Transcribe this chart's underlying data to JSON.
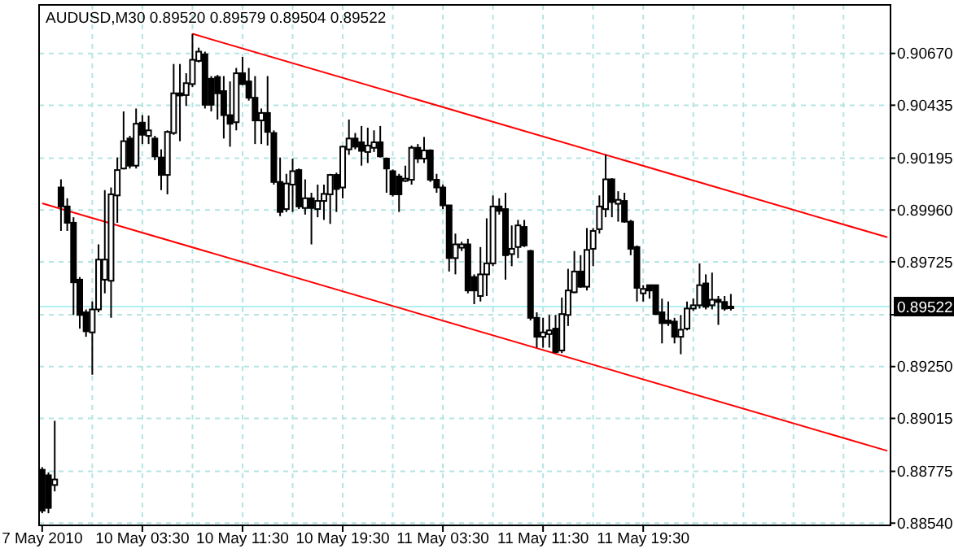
{
  "chart_data": {
    "type": "candlestick",
    "title": "AUDUSD,M30  0.89520 0.89579 0.89504 0.89522",
    "categories": [
      "7 May 2010",
      null,
      null,
      null,
      null,
      null,
      null,
      null,
      null,
      null,
      null,
      null,
      null,
      null,
      null,
      null,
      "10 May 03:30",
      null,
      null,
      null,
      null,
      null,
      null,
      null,
      null,
      null,
      null,
      null,
      null,
      null,
      null,
      null,
      "10 May 11:30",
      null,
      null,
      null,
      null,
      null,
      null,
      null,
      null,
      null,
      null,
      null,
      null,
      null,
      null,
      null,
      "10 May 19:30",
      null,
      null,
      null,
      null,
      null,
      null,
      null,
      null,
      null,
      null,
      null,
      null,
      null,
      null,
      null,
      "11 May 03:30",
      null,
      null,
      null,
      null,
      null,
      null,
      null,
      null,
      null,
      null,
      null,
      null,
      null,
      null,
      null,
      "11 May 11:30",
      null,
      null,
      null,
      null,
      null,
      null,
      null,
      null,
      null,
      null,
      null,
      null,
      null,
      null,
      null,
      "11 May 19:30",
      null,
      null,
      null,
      null,
      null,
      null,
      null,
      null,
      null,
      null,
      null,
      null,
      null,
      null,
      null,
      null,
      null,
      null,
      null,
      null,
      null,
      null,
      null,
      null,
      null,
      null,
      null,
      null,
      null,
      null,
      null,
      null,
      null,
      null,
      null,
      null,
      null,
      null,
      null
    ],
    "ohlc": [
      [
        0.88782,
        0.88794,
        0.88585,
        0.88597
      ],
      [
        0.88757,
        0.8877,
        0.88585,
        0.88609
      ],
      [
        0.88713,
        0.89004,
        0.88684,
        0.88738
      ],
      [
        0.90062,
        0.90099,
        0.89865,
        0.89976
      ],
      [
        0.89976,
        0.90013,
        0.89865,
        0.89902
      ],
      [
        0.89902,
        0.89927,
        0.89484,
        0.89632
      ],
      [
        0.89644,
        0.89656,
        0.89422,
        0.89484
      ],
      [
        0.89496,
        0.89509,
        0.89385,
        0.8941
      ],
      [
        0.89405,
        0.89545,
        0.89213,
        0.89509
      ],
      [
        0.89509,
        0.89804,
        0.89496,
        0.89735
      ],
      [
        0.89644,
        0.9005,
        0.89582,
        0.89735
      ],
      [
        0.89639,
        0.90062,
        0.89471,
        0.90031
      ],
      [
        0.90026,
        0.90198,
        0.89902,
        0.90141
      ],
      [
        0.90148,
        0.90407,
        0.90144,
        0.90272
      ],
      [
        0.90284,
        0.90296,
        0.90148,
        0.90161
      ],
      [
        0.90161,
        0.9042,
        0.90148,
        0.90351
      ],
      [
        0.90356,
        0.9039,
        0.90259,
        0.90301
      ],
      [
        0.90296,
        0.90388,
        0.90259,
        0.90321
      ],
      [
        0.90284,
        0.90296,
        0.90186,
        0.90203
      ],
      [
        0.90198,
        0.90235,
        0.9005,
        0.90119
      ],
      [
        0.90119,
        0.90321,
        0.90031,
        0.90314
      ],
      [
        0.90309,
        0.90622,
        0.90301,
        0.90489
      ],
      [
        0.90489,
        0.90622,
        0.90272,
        0.90479
      ],
      [
        0.90481,
        0.9058,
        0.90432,
        0.90535
      ],
      [
        0.90531,
        0.90759,
        0.90518,
        0.90641
      ],
      [
        0.90636,
        0.90696,
        0.90629,
        0.90678
      ],
      [
        0.90666,
        0.90678,
        0.9042,
        0.90437
      ],
      [
        0.90555,
        0.90567,
        0.90407,
        0.90437
      ],
      [
        0.90563,
        0.90572,
        0.9037,
        0.90489
      ],
      [
        0.90499,
        0.90567,
        0.90284,
        0.9039
      ],
      [
        0.9039,
        0.90543,
        0.90247,
        0.90351
      ],
      [
        0.90358,
        0.90604,
        0.90321,
        0.9058
      ],
      [
        0.9058,
        0.90654,
        0.90526,
        0.90531
      ],
      [
        0.90543,
        0.90604,
        0.90456,
        0.90469
      ],
      [
        0.90469,
        0.90567,
        0.90259,
        0.90366
      ],
      [
        0.90366,
        0.9042,
        0.90259,
        0.904
      ],
      [
        0.904,
        0.90567,
        0.90252,
        0.90314
      ],
      [
        0.90309,
        0.90321,
        0.90075,
        0.90087
      ],
      [
        0.90087,
        0.90198,
        0.89932,
        0.89951
      ],
      [
        0.89964,
        0.90124,
        0.89951,
        0.9008
      ],
      [
        0.90075,
        0.90193,
        0.89951,
        0.90136
      ],
      [
        0.90141,
        0.90148,
        0.89964,
        0.89976
      ],
      [
        0.89969,
        0.90099,
        0.89939,
        0.90013
      ],
      [
        0.90013,
        0.90038,
        0.89804,
        0.89969
      ],
      [
        0.89964,
        0.90075,
        0.89927,
        0.90001
      ],
      [
        0.90001,
        0.90075,
        0.89915,
        0.90033
      ],
      [
        0.90031,
        0.90124,
        0.89897,
        0.90119
      ],
      [
        0.90119,
        0.90129,
        0.89951,
        0.90055
      ],
      [
        0.90062,
        0.90252,
        0.90013,
        0.90247
      ],
      [
        0.90235,
        0.9037,
        0.9021,
        0.90284
      ],
      [
        0.90284,
        0.90309,
        0.90235,
        0.90247
      ],
      [
        0.90267,
        0.90341,
        0.90161,
        0.90228
      ],
      [
        0.90223,
        0.90333,
        0.90173,
        0.90252
      ],
      [
        0.90242,
        0.90321,
        0.90223,
        0.90267
      ],
      [
        0.90267,
        0.90341,
        0.90198,
        0.90203
      ],
      [
        0.90193,
        0.90198,
        0.90038,
        0.90148
      ],
      [
        0.90136,
        0.90144,
        0.90021,
        0.90031
      ],
      [
        0.90112,
        0.90124,
        0.89951,
        0.90031
      ],
      [
        0.90092,
        0.90161,
        0.90087,
        0.90102
      ],
      [
        0.90097,
        0.90252,
        0.90075,
        0.90242
      ],
      [
        0.90242,
        0.90259,
        0.90173,
        0.90193
      ],
      [
        0.90193,
        0.90291,
        0.90173,
        0.9023
      ],
      [
        0.9023,
        0.90235,
        0.90087,
        0.90097
      ],
      [
        0.90097,
        0.90124,
        0.90038,
        0.90062
      ],
      [
        0.90062,
        0.90075,
        0.89964,
        0.89981
      ],
      [
        0.89981,
        0.89981,
        0.89681,
        0.89742
      ],
      [
        0.89742,
        0.89853,
        0.89668,
        0.89804
      ],
      [
        0.89789,
        0.89816,
        0.89774,
        0.89804
      ],
      [
        0.89804,
        0.89829,
        0.89582,
        0.89595
      ],
      [
        0.89656,
        0.89668,
        0.89533,
        0.89595
      ],
      [
        0.8957,
        0.89792,
        0.89545,
        0.89668
      ],
      [
        0.89668,
        0.89922,
        0.8957,
        0.89718
      ],
      [
        0.89718,
        0.90026,
        0.89705,
        0.89976
      ],
      [
        0.89976,
        0.90013,
        0.89939,
        0.89956
      ],
      [
        0.89964,
        0.90038,
        0.89644,
        0.89755
      ],
      [
        0.8976,
        0.8989,
        0.89705,
        0.89784
      ],
      [
        0.89792,
        0.89915,
        0.89742,
        0.8989
      ],
      [
        0.89883,
        0.89915,
        0.89792,
        0.89799
      ],
      [
        0.89774,
        0.89779,
        0.89459,
        0.89471
      ],
      [
        0.89471,
        0.89496,
        0.89336,
        0.89385
      ],
      [
        0.89385,
        0.89471,
        0.89336,
        0.89405
      ],
      [
        0.89397,
        0.89484,
        0.89336,
        0.89414
      ],
      [
        0.89422,
        0.89484,
        0.89311,
        0.89316
      ],
      [
        0.89323,
        0.89563,
        0.89311,
        0.89488
      ],
      [
        0.89484,
        0.89693,
        0.89434,
        0.89595
      ],
      [
        0.89587,
        0.89774,
        0.89582,
        0.89681
      ],
      [
        0.89681,
        0.89755,
        0.89607,
        0.89612
      ],
      [
        0.89612,
        0.89878,
        0.89595,
        0.89779
      ],
      [
        0.89784,
        0.89878,
        0.89705,
        0.89865
      ],
      [
        0.89873,
        0.90026,
        0.89853,
        0.89976
      ],
      [
        0.89964,
        0.9021,
        0.89927,
        0.90099
      ],
      [
        0.90099,
        0.90104,
        0.89927,
        0.89996
      ],
      [
        0.89988,
        0.90045,
        0.89907,
        0.90006
      ],
      [
        0.90001,
        0.90038,
        0.89902,
        0.89907
      ],
      [
        0.89907,
        0.89915,
        0.89755,
        0.89784
      ],
      [
        0.89792,
        0.89799,
        0.89545,
        0.89607
      ],
      [
        0.89582,
        0.89619,
        0.89545,
        0.89602
      ],
      [
        0.89619,
        0.89619,
        0.89558,
        0.89595
      ],
      [
        0.89619,
        0.89619,
        0.89484,
        0.89488
      ],
      [
        0.89496,
        0.89558,
        0.89355,
        0.89447
      ],
      [
        0.89459,
        0.89545,
        0.89434,
        0.89447
      ],
      [
        0.89454,
        0.89471,
        0.89355,
        0.89385
      ],
      [
        0.89385,
        0.89484,
        0.89306,
        0.89417
      ],
      [
        0.89422,
        0.89545,
        0.89414,
        0.89513
      ],
      [
        0.89513,
        0.89558,
        0.89503,
        0.89528
      ],
      [
        0.89528,
        0.89718,
        0.89513,
        0.89619
      ],
      [
        0.89627,
        0.89668,
        0.89509,
        0.89521
      ],
      [
        0.89528,
        0.89676,
        0.89509,
        0.89553
      ],
      [
        0.89553,
        0.8957,
        0.89439,
        0.89543
      ],
      [
        0.89543,
        0.8957,
        0.89503,
        0.89513
      ],
      [
        0.8952,
        0.89579,
        0.89504,
        0.89522
      ],
      null,
      null,
      null,
      null,
      null,
      null,
      null,
      null,
      null,
      null,
      null,
      null,
      null,
      null,
      null,
      null,
      null,
      null,
      null,
      null,
      null,
      null,
      null,
      null,
      null
    ],
    "series": [
      {
        "type": "line",
        "color": "#ff0000",
        "values": [
          null,
          null,
          null,
          null,
          null,
          null,
          null,
          null,
          null,
          null,
          null,
          null,
          null,
          null,
          null,
          null,
          null,
          null,
          null,
          null,
          null,
          null,
          null,
          null,
          0.90759,
          null,
          null,
          null,
          null,
          null,
          null,
          null,
          null,
          null,
          null,
          null,
          null,
          null,
          null,
          null,
          null,
          null,
          null,
          null,
          null,
          null,
          null,
          null,
          null,
          null,
          null,
          null,
          null,
          null,
          null,
          null,
          null,
          null,
          null,
          null,
          null,
          null,
          null,
          null,
          null,
          null,
          null,
          null,
          null,
          null,
          null,
          null,
          null,
          null,
          null,
          null,
          null,
          null,
          null,
          null,
          null,
          null,
          null,
          null,
          null,
          null,
          null,
          null,
          null,
          null,
          null,
          null,
          null,
          null,
          null,
          null,
          null,
          null,
          null,
          null,
          null,
          null,
          null,
          null,
          null,
          null,
          null,
          null,
          null,
          null,
          null,
          null,
          null,
          null,
          null,
          null,
          null,
          null,
          null,
          null,
          null,
          null,
          null,
          null,
          null,
          null,
          null,
          null,
          null,
          null,
          null,
          null,
          null,
          null,
          null,
          0.89836
        ]
      },
      {
        "type": "line",
        "color": "#ff0000",
        "values": [
          0.8999,
          null,
          null,
          null,
          null,
          null,
          null,
          null,
          null,
          null,
          null,
          null,
          null,
          null,
          null,
          null,
          null,
          null,
          null,
          null,
          null,
          null,
          null,
          null,
          null,
          null,
          null,
          null,
          null,
          null,
          null,
          null,
          null,
          null,
          null,
          null,
          null,
          null,
          null,
          null,
          null,
          null,
          null,
          null,
          null,
          null,
          null,
          null,
          null,
          null,
          null,
          null,
          null,
          null,
          null,
          null,
          null,
          null,
          null,
          null,
          null,
          null,
          null,
          null,
          null,
          null,
          null,
          null,
          null,
          null,
          null,
          null,
          null,
          null,
          null,
          null,
          null,
          null,
          null,
          null,
          null,
          null,
          null,
          null,
          null,
          null,
          null,
          null,
          null,
          null,
          null,
          null,
          null,
          null,
          null,
          null,
          null,
          null,
          null,
          null,
          null,
          null,
          null,
          null,
          null,
          null,
          null,
          null,
          null,
          null,
          null,
          null,
          null,
          null,
          null,
          null,
          null,
          null,
          null,
          null,
          null,
          null,
          null,
          null,
          null,
          null,
          null,
          null,
          null,
          null,
          null,
          null,
          null,
          null,
          null,
          0.88868
        ]
      }
    ],
    "ylim": [
      0.8853,
      0.9089
    ],
    "yticks": [
      {
        "value": 0.8854,
        "label": "0.88540"
      },
      {
        "value": 0.88775,
        "label": "0.88775"
      },
      {
        "value": 0.89015,
        "label": "0.89015"
      },
      {
        "value": 0.8925,
        "label": "0.89250"
      },
      {
        "value": 0.89485,
        "label": null
      },
      {
        "value": 0.89725,
        "label": "0.89725"
      },
      {
        "value": 0.8996,
        "label": "0.89960"
      },
      {
        "value": 0.90195,
        "label": "0.90195"
      },
      {
        "value": 0.90435,
        "label": "0.90435"
      },
      {
        "value": 0.9067,
        "label": "0.90670"
      }
    ],
    "ref_lines": [
      {
        "axis": "y",
        "value": 0.89522,
        "label": "0.89522",
        "color": "#b0f0f0"
      }
    ],
    "grid": true
  }
}
